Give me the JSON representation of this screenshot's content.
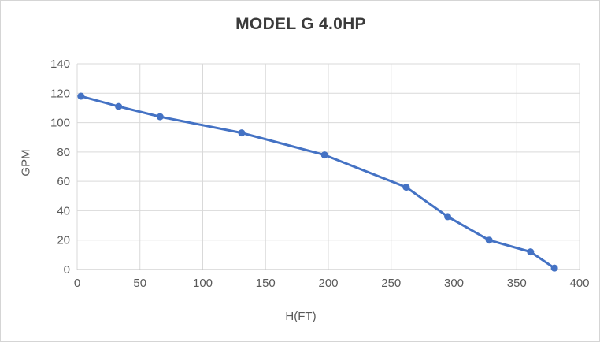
{
  "chart": {
    "title": "MODEL G 4.0HP",
    "xlabel": "H(FT)",
    "ylabel": "GPM"
  },
  "chart_data": {
    "type": "line",
    "title": "MODEL G 4.0HP",
    "xlabel": "H(FT)",
    "ylabel": "GPM",
    "xlim": [
      0,
      400
    ],
    "ylim": [
      0,
      140
    ],
    "xticks": [
      0,
      50,
      100,
      150,
      200,
      250,
      300,
      350,
      400
    ],
    "yticks": [
      0,
      20,
      40,
      60,
      80,
      100,
      120,
      140
    ],
    "grid": true,
    "legend_position": "none",
    "series": [
      {
        "name": "MODEL G 4.0HP",
        "color": "#4472C4",
        "points": [
          [
            3,
            118
          ],
          [
            33,
            111
          ],
          [
            66,
            104
          ],
          [
            131,
            93
          ],
          [
            197,
            78
          ],
          [
            262,
            56
          ],
          [
            295,
            36
          ],
          [
            328,
            20
          ],
          [
            361,
            12
          ],
          [
            380,
            1
          ]
        ]
      }
    ],
    "style": {
      "line_color": "#4472C4",
      "marker_color": "#4472C4",
      "gridline_color": "#d9d9d9",
      "axis_line_color": "#bfbfbf",
      "tick_label_color": "#595959",
      "title_color": "#3b3b3b",
      "background": "#ffffff"
    }
  }
}
